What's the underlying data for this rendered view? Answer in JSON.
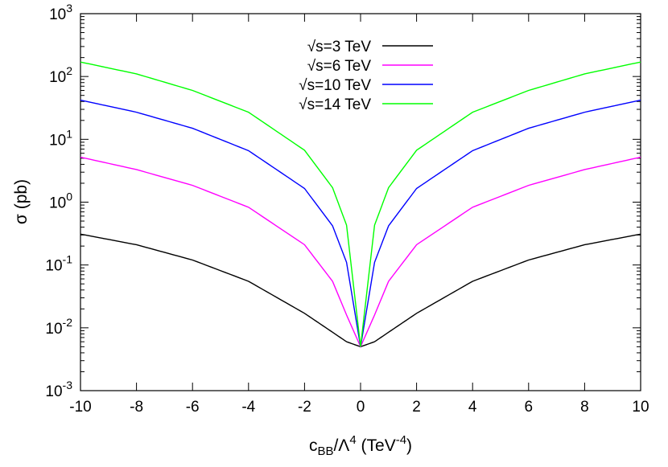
{
  "chart_data": {
    "type": "line",
    "title": "",
    "xlabel": {
      "main": "c",
      "sub": "BB",
      "mid": "/Λ",
      "sup": "4",
      "tail": " (TeV",
      "tail_sup": "-4",
      "end": ")"
    },
    "ylabel": "σ (pb)",
    "xlim": [
      -10,
      10
    ],
    "ylim": [
      0.001,
      1000
    ],
    "yscale": "log",
    "grid": false,
    "legend_position": "top-center",
    "x_ticks": [
      -10,
      -8,
      -6,
      -4,
      -2,
      0,
      2,
      4,
      6,
      8,
      10
    ],
    "x_tick_labels": [
      "-10",
      "-8",
      "-6",
      "-4",
      "-2",
      "0",
      "2",
      "4",
      "6",
      "8",
      "10"
    ],
    "y_ticks": [
      {
        "value": 0.001,
        "base": "10",
        "exp": "-3"
      },
      {
        "value": 0.01,
        "base": "10",
        "exp": "-2"
      },
      {
        "value": 0.1,
        "base": "10",
        "exp": "-1"
      },
      {
        "value": 1,
        "base": "10",
        "exp": "0"
      },
      {
        "value": 10,
        "base": "10",
        "exp": "1"
      },
      {
        "value": 100,
        "base": "10",
        "exp": "2"
      },
      {
        "value": 1000,
        "base": "10",
        "exp": "3"
      }
    ],
    "series": [
      {
        "name": "√s=3 TeV",
        "color": "#000000",
        "x": [
          -10,
          -8,
          -6,
          -4,
          -2,
          -1,
          -0.5,
          0,
          0.5,
          1,
          2,
          4,
          6,
          8,
          10
        ],
        "y": [
          0.31,
          0.21,
          0.12,
          0.055,
          0.017,
          0.0085,
          0.006,
          0.005,
          0.006,
          0.0085,
          0.017,
          0.055,
          0.12,
          0.21,
          0.31
        ]
      },
      {
        "name": "√s=6 TeV",
        "color": "#ff00ff",
        "x": [
          -10,
          -8,
          -6,
          -4,
          -2,
          -1,
          -0.5,
          0,
          0.5,
          1,
          2,
          4,
          6,
          8,
          10
        ],
        "y": [
          5.2,
          3.3,
          1.85,
          0.83,
          0.21,
          0.055,
          0.016,
          0.005,
          0.016,
          0.055,
          0.21,
          0.83,
          1.85,
          3.3,
          5.2
        ]
      },
      {
        "name": "√s=10 TeV",
        "color": "#0000ff",
        "x": [
          -10,
          -8,
          -6,
          -4,
          -2,
          -1,
          -0.5,
          0,
          0.5,
          1,
          2,
          4,
          6,
          8,
          10
        ],
        "y": [
          42,
          27,
          15,
          6.6,
          1.65,
          0.42,
          0.11,
          0.005,
          0.11,
          0.42,
          1.65,
          6.6,
          15,
          27,
          42
        ]
      },
      {
        "name": "√s=14 TeV",
        "color": "#00ff00",
        "x": [
          -10,
          -8,
          -6,
          -4,
          -2,
          -1,
          -0.5,
          0,
          0.5,
          1,
          2,
          4,
          6,
          8,
          10
        ],
        "y": [
          170,
          110,
          60,
          27,
          6.7,
          1.7,
          0.43,
          0.005,
          0.43,
          1.7,
          6.7,
          27,
          60,
          110,
          170
        ]
      }
    ]
  }
}
